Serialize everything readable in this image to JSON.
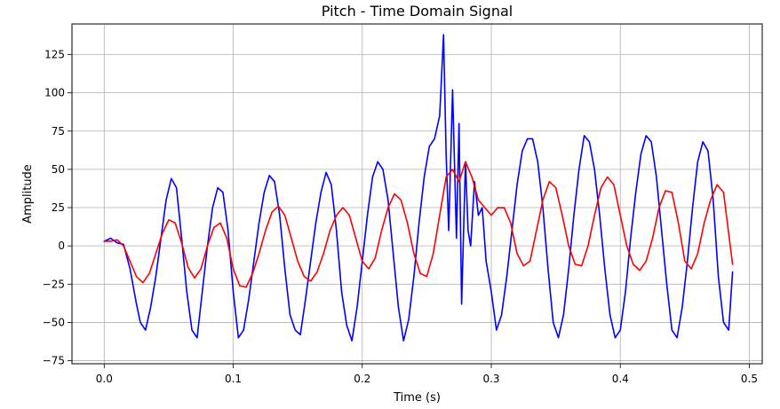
{
  "chart_data": {
    "type": "line",
    "title": "Pitch - Time Domain Signal",
    "xlabel": "Time (s)",
    "ylabel": "Amplitude",
    "xlim": [
      -0.025,
      0.51
    ],
    "ylim": [
      -77,
      145
    ],
    "xticks": [
      0.0,
      0.1,
      0.2,
      0.3,
      0.4,
      0.5
    ],
    "xtick_labels": [
      "0.0",
      "0.1",
      "0.2",
      "0.3",
      "0.4",
      "0.5"
    ],
    "yticks": [
      -75,
      -50,
      -25,
      0,
      25,
      50,
      75,
      100,
      125
    ],
    "ytick_labels": [
      "−75",
      "−50",
      "−25",
      "0",
      "25",
      "50",
      "75",
      "100",
      "125"
    ],
    "grid": true,
    "series": [
      {
        "color": "#0000ff",
        "x": [
          0.0,
          0.005,
          0.01,
          0.015,
          0.02,
          0.025,
          0.028,
          0.032,
          0.036,
          0.04,
          0.044,
          0.048,
          0.052,
          0.056,
          0.06,
          0.064,
          0.068,
          0.072,
          0.076,
          0.08,
          0.084,
          0.088,
          0.092,
          0.096,
          0.1,
          0.104,
          0.108,
          0.112,
          0.116,
          0.12,
          0.124,
          0.128,
          0.132,
          0.136,
          0.14,
          0.144,
          0.148,
          0.152,
          0.156,
          0.16,
          0.164,
          0.168,
          0.172,
          0.176,
          0.18,
          0.184,
          0.188,
          0.192,
          0.196,
          0.2,
          0.204,
          0.208,
          0.212,
          0.216,
          0.22,
          0.224,
          0.228,
          0.232,
          0.236,
          0.24,
          0.244,
          0.248,
          0.252,
          0.256,
          0.26,
          0.263,
          0.265,
          0.267,
          0.27,
          0.273,
          0.275,
          0.277,
          0.28,
          0.282,
          0.284,
          0.287,
          0.29,
          0.293,
          0.296,
          0.3,
          0.304,
          0.308,
          0.312,
          0.316,
          0.32,
          0.324,
          0.328,
          0.332,
          0.336,
          0.34,
          0.344,
          0.348,
          0.352,
          0.356,
          0.36,
          0.364,
          0.368,
          0.372,
          0.376,
          0.38,
          0.384,
          0.388,
          0.392,
          0.396,
          0.4,
          0.404,
          0.408,
          0.412,
          0.416,
          0.42,
          0.424,
          0.428,
          0.432,
          0.436,
          0.44,
          0.444,
          0.448,
          0.452,
          0.456,
          0.46,
          0.464,
          0.468,
          0.472,
          0.476,
          0.48,
          0.484,
          0.487
        ],
        "y": [
          3,
          5,
          2,
          1,
          -15,
          -38,
          -50,
          -55,
          -40,
          -20,
          5,
          30,
          44,
          38,
          5,
          -30,
          -55,
          -60,
          -30,
          0,
          25,
          38,
          35,
          10,
          -30,
          -60,
          -55,
          -35,
          -10,
          15,
          35,
          46,
          42,
          20,
          -15,
          -45,
          -55,
          -58,
          -35,
          -10,
          15,
          35,
          48,
          40,
          10,
          -30,
          -52,
          -62,
          -40,
          -10,
          20,
          45,
          55,
          50,
          30,
          -5,
          -40,
          -62,
          -48,
          -20,
          15,
          45,
          65,
          70,
          85,
          138,
          60,
          10,
          102,
          5,
          80,
          -38,
          55,
          10,
          0,
          42,
          20,
          25,
          -10,
          -30,
          -55,
          -45,
          -20,
          10,
          40,
          62,
          70,
          70,
          55,
          25,
          -15,
          -50,
          -60,
          -45,
          -15,
          20,
          50,
          72,
          68,
          50,
          20,
          -15,
          -45,
          -60,
          -55,
          -30,
          5,
          35,
          60,
          72,
          68,
          45,
          10,
          -25,
          -55,
          -60,
          -40,
          -10,
          25,
          55,
          68,
          62,
          30,
          -20,
          -50,
          -55,
          -17
        ]
      },
      {
        "color": "#ff0000",
        "x": [
          0.0,
          0.005,
          0.01,
          0.015,
          0.02,
          0.025,
          0.03,
          0.035,
          0.04,
          0.045,
          0.05,
          0.055,
          0.06,
          0.065,
          0.07,
          0.075,
          0.08,
          0.085,
          0.09,
          0.095,
          0.1,
          0.105,
          0.11,
          0.115,
          0.12,
          0.125,
          0.13,
          0.135,
          0.14,
          0.145,
          0.15,
          0.155,
          0.16,
          0.165,
          0.17,
          0.175,
          0.18,
          0.185,
          0.19,
          0.195,
          0.2,
          0.205,
          0.21,
          0.215,
          0.22,
          0.225,
          0.23,
          0.235,
          0.24,
          0.245,
          0.25,
          0.255,
          0.26,
          0.265,
          0.27,
          0.275,
          0.28,
          0.285,
          0.29,
          0.295,
          0.3,
          0.305,
          0.31,
          0.315,
          0.32,
          0.325,
          0.33,
          0.335,
          0.34,
          0.345,
          0.35,
          0.355,
          0.36,
          0.365,
          0.37,
          0.375,
          0.38,
          0.385,
          0.39,
          0.395,
          0.4,
          0.405,
          0.41,
          0.415,
          0.42,
          0.425,
          0.43,
          0.435,
          0.44,
          0.445,
          0.45,
          0.455,
          0.46,
          0.465,
          0.47,
          0.475,
          0.48,
          0.487
        ],
        "y": [
          3,
          3,
          4,
          0,
          -10,
          -20,
          -24,
          -18,
          -5,
          8,
          17,
          15,
          2,
          -14,
          -21,
          -15,
          0,
          12,
          15,
          5,
          -15,
          -26,
          -27,
          -18,
          -5,
          10,
          22,
          26,
          20,
          5,
          -10,
          -20,
          -23,
          -17,
          -5,
          10,
          20,
          25,
          20,
          5,
          -10,
          -15,
          -8,
          10,
          25,
          34,
          30,
          15,
          -5,
          -18,
          -20,
          -5,
          20,
          45,
          50,
          42,
          55,
          45,
          30,
          25,
          20,
          25,
          25,
          15,
          -5,
          -13,
          -10,
          10,
          30,
          42,
          38,
          20,
          0,
          -12,
          -13,
          0,
          20,
          38,
          45,
          40,
          20,
          0,
          -12,
          -16,
          -10,
          5,
          25,
          36,
          35,
          15,
          -10,
          -15,
          -5,
          15,
          30,
          40,
          35,
          -12
        ]
      }
    ]
  }
}
